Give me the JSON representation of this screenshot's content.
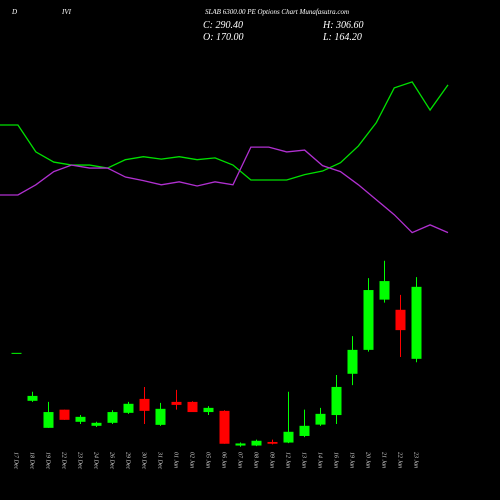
{
  "chart_data": {
    "type": "candlestick",
    "title_parts": [
      "D",
      "IVI",
      "SLAB 6300.00 PE Options Chart Munafasutra.com"
    ],
    "stats": [
      "C: 290.40",
      "H: 306.60",
      "O: 170.00",
      "L: 164.20"
    ],
    "categories": [
      "17 Dec",
      "18 Dec",
      "19 Dec",
      "22 Dec",
      "23 Dec",
      "24 Dec",
      "26 Dec",
      "29 Dec",
      "30 Dec",
      "31 Dec",
      "01 Jan",
      "02 Jan",
      "05 Jan",
      "06 Jan",
      "07 Jan",
      "08 Jan",
      "09 Jan",
      "12 Jan",
      "13 Jan",
      "14 Jan",
      "16 Jan",
      "19 Jan",
      "20 Jan",
      "21 Jan",
      "22 Jan",
      "23 Jan"
    ],
    "open": [
      180,
      99.8,
      54.6,
      85,
      64.7,
      58,
      63,
      79.7,
      103,
      59.6,
      98,
      98,
      81,
      83,
      25,
      25,
      31,
      30,
      41,
      60,
      76,
      145,
      185,
      269,
      252,
      170
    ],
    "high": [
      180,
      115,
      98,
      85,
      76,
      64.7,
      84,
      98,
      123,
      96.4,
      118,
      99,
      91,
      84,
      30,
      35,
      35,
      115,
      85,
      88,
      143,
      208,
      305,
      334,
      277,
      306.6
    ],
    "low": [
      180,
      98,
      54.6,
      68,
      61,
      56,
      61,
      78,
      61,
      58,
      85,
      81,
      76,
      28,
      23,
      24,
      27,
      29,
      39,
      58,
      61,
      126,
      182,
      264,
      173,
      164.2
    ],
    "close": [
      180,
      108,
      81,
      68,
      73,
      63,
      81,
      94.8,
      83,
      86.4,
      93,
      81,
      88,
      28,
      28.5,
      33,
      28,
      48,
      58,
      78,
      123,
      185,
      285,
      300,
      218,
      290.4
    ],
    "up_color": "#00ff00",
    "down_color": "#ff0000",
    "series": [
      {
        "color": "#00e000",
        "values": [
          561,
          561,
          516,
          499,
          494,
          494,
          489,
          503,
          508,
          504,
          508,
          503,
          506,
          494,
          469,
          469,
          469,
          478,
          484,
          498,
          526,
          565,
          623,
          633,
          586,
          628
        ]
      },
      {
        "color": "#b030d0",
        "values": [
          444,
          444,
          461,
          483,
          494,
          489,
          489,
          474,
          468,
          461,
          466,
          459,
          466,
          461,
          524,
          524,
          516,
          519,
          493,
          483,
          461,
          436,
          411,
          381,
          394,
          381
        ]
      }
    ],
    "ylim": [
      0,
      770
    ]
  }
}
